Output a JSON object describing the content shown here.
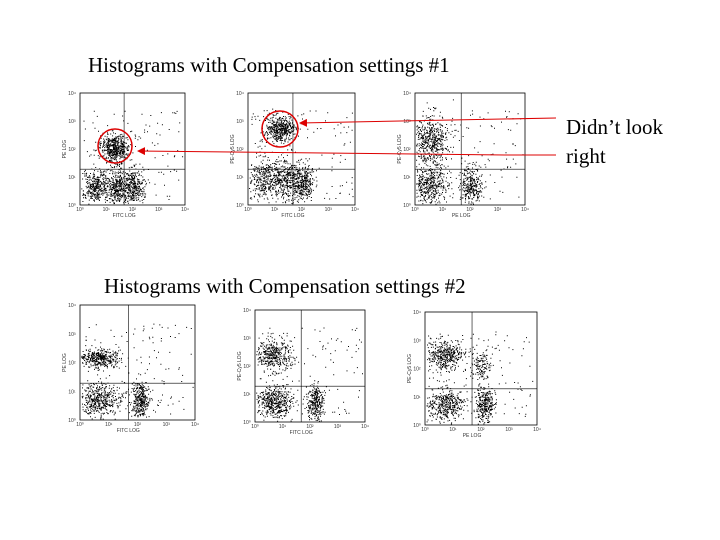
{
  "slide": {
    "annotation": [
      "Didn’t look",
      "right"
    ],
    "tick_labels": [
      "10⁰",
      "10¹",
      "10²",
      "10³",
      "10⁴"
    ],
    "sections": [
      {
        "title": "Histograms with Compensation settings #1",
        "plots": [
          {
            "x_label": "FITC LOG",
            "y_label": "PE LOG"
          },
          {
            "x_label": "FITC LOG",
            "y_label": "PE-Cy5 LOG"
          },
          {
            "x_label": "PE LOG",
            "y_label": "PE-Cy5 LOG"
          }
        ]
      },
      {
        "title": "Histograms with Compensation settings #2",
        "plots": [
          {
            "x_label": "FITC LOG",
            "y_label": "PE LOG"
          },
          {
            "x_label": "FITC LOG",
            "y_label": "PE-Cy5 LOG"
          },
          {
            "x_label": "PE LOG",
            "y_label": "PE-Cy5 LOG"
          }
        ]
      }
    ]
  }
}
